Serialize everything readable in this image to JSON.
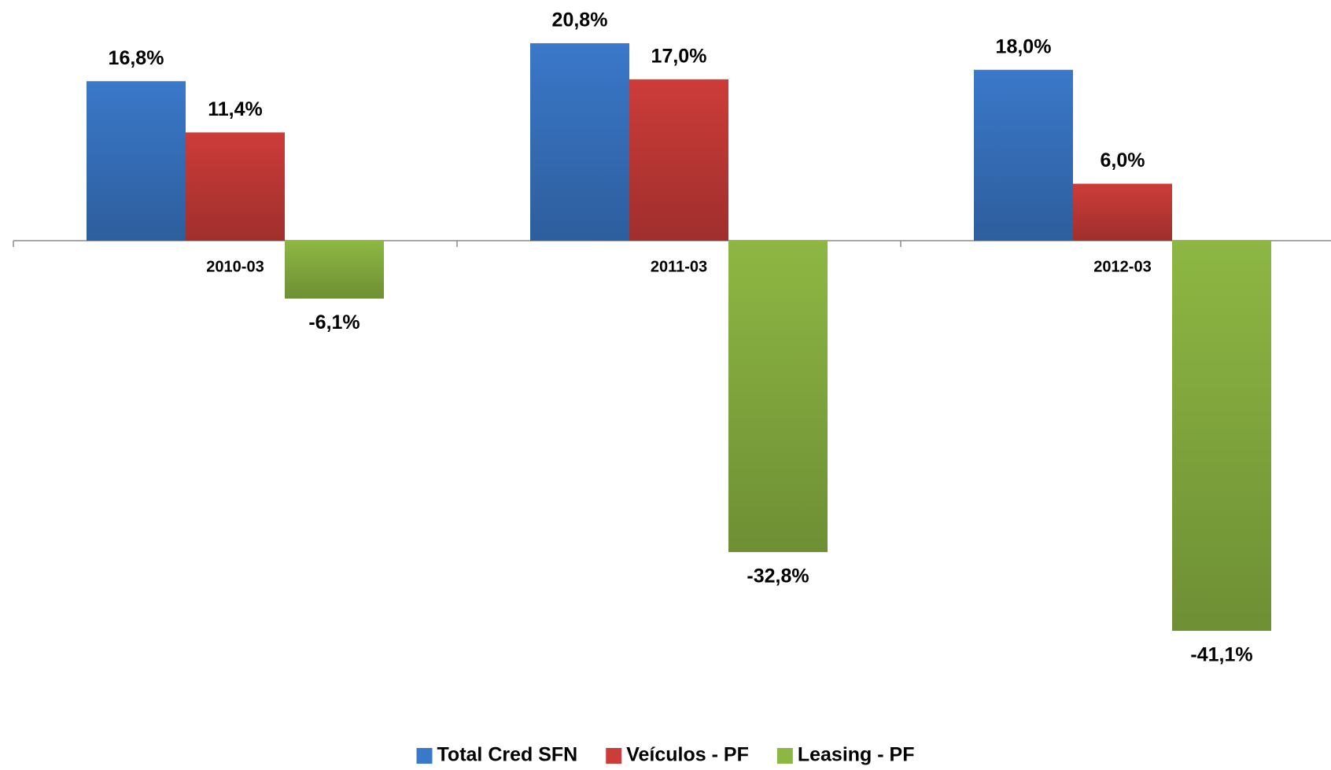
{
  "chart_data": {
    "type": "bar",
    "categories": [
      "2010-03",
      "2011-03",
      "2012-03"
    ],
    "series": [
      {
        "name": "Total Cred SFN",
        "color": "#3a78c9",
        "values": [
          16.8,
          20.8,
          18.0
        ],
        "value_labels": [
          "16,8%",
          "20,8%",
          "18,0%"
        ]
      },
      {
        "name": "Veículos - PF",
        "color": "#cc3c39",
        "values": [
          11.4,
          17.0,
          6.0
        ],
        "value_labels": [
          "11,4%",
          "17,0%",
          "6,0%"
        ]
      },
      {
        "name": "Leasing - PF",
        "color": "#8db743",
        "values": [
          -6.1,
          -32.8,
          -41.1
        ],
        "value_labels": [
          "-6,1%",
          "-32,8%",
          "-41,1%"
        ]
      }
    ],
    "legend": "bottom"
  }
}
